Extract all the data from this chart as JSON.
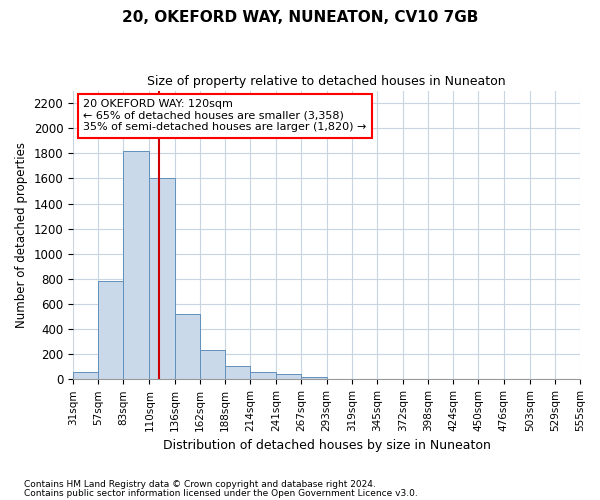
{
  "title": "20, OKEFORD WAY, NUNEATON, CV10 7GB",
  "subtitle": "Size of property relative to detached houses in Nuneaton",
  "xlabel": "Distribution of detached houses by size in Nuneaton",
  "ylabel": "Number of detached properties",
  "footnote1": "Contains HM Land Registry data © Crown copyright and database right 2024.",
  "footnote2": "Contains public sector information licensed under the Open Government Licence v3.0.",
  "annotation_line1": "20 OKEFORD WAY: 120sqm",
  "annotation_line2": "← 65% of detached houses are smaller (3,358)",
  "annotation_line3": "35% of semi-detached houses are larger (1,820) →",
  "property_sqm": 120,
  "bar_color": "#c9d9ea",
  "bar_edge_color": "#6090bb",
  "redline_color": "#cc0000",
  "grid_color": "#c8d4e0",
  "bg_color": "#ffffff",
  "fig_bg_color": "#ffffff",
  "categories": [
    "31sqm",
    "57sqm",
    "83sqm",
    "110sqm",
    "136sqm",
    "162sqm",
    "188sqm",
    "214sqm",
    "241sqm",
    "267sqm",
    "293sqm",
    "319sqm",
    "345sqm",
    "372sqm",
    "398sqm",
    "424sqm",
    "450sqm",
    "476sqm",
    "503sqm",
    "529sqm",
    "555sqm"
  ],
  "bin_edges": [
    31,
    57,
    83,
    110,
    136,
    162,
    188,
    214,
    241,
    267,
    293,
    319,
    345,
    372,
    398,
    424,
    450,
    476,
    503,
    529,
    555
  ],
  "values": [
    55,
    780,
    1820,
    1600,
    520,
    230,
    110,
    60,
    40,
    20,
    0,
    0,
    0,
    0,
    0,
    0,
    0,
    0,
    0,
    0
  ],
  "ylim": [
    0,
    2300
  ],
  "yticks": [
    0,
    200,
    400,
    600,
    800,
    1000,
    1200,
    1400,
    1600,
    1800,
    2000,
    2200
  ]
}
